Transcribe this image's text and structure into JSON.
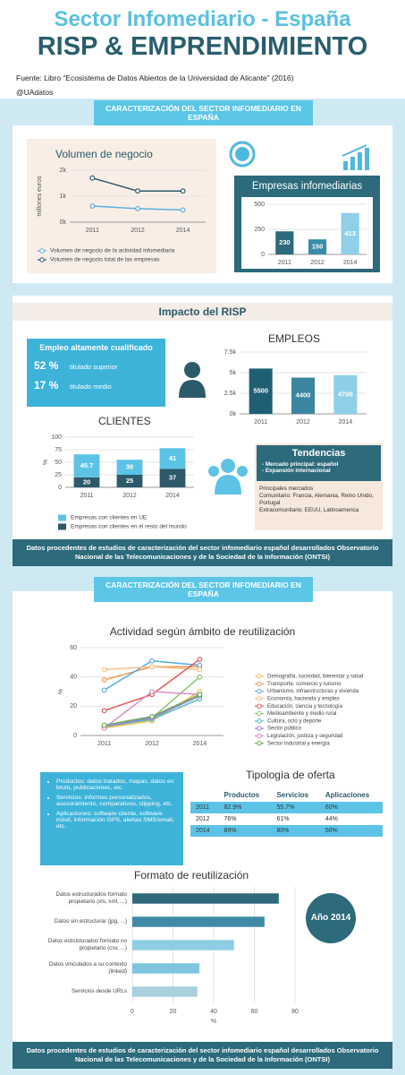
{
  "header": {
    "title": "Sector Infomediario - España",
    "subtitle": "RISP & EMPRENDIMIENTO",
    "source": "Fuente: Libro “Ecosistema de Datos Abiertos de la Universidad de Alicante” (2016)",
    "handle": "@UAdatos"
  },
  "banners": [
    "CARACTERIZACIÓN DEL SECTOR INFOMEDIARIO EN ESPAÑA",
    "CARACTERIZACIÓN DEL SECTOR INFOMEDIARIO EN ESPAÑA"
  ],
  "impacto": {
    "title": "Impacto del RISP",
    "empleo": {
      "title": "Empleo altamente cualificado",
      "items": [
        {
          "value": "52 %",
          "label": "titulado superior"
        },
        {
          "value": "17 %",
          "label": "titulado medio"
        }
      ]
    },
    "tendencias": {
      "title": "Tendencias",
      "points": [
        "- Mercado principal: español",
        "- Expansión internacional"
      ],
      "markets_title": "Principales mercados",
      "markets": [
        "Comunitario: Francia, Alemania, Reino Unido, Portugal",
        "Extracomunitario: EEUU, Latinoamerica"
      ]
    }
  },
  "footers": [
    "Datos procedentes de estudios de caracterización del sector infomediario español desarrollados Observatorio Nacional de las Telecomunicaciones y de la Sociedad de la Información (ONTSI)",
    "Datos procedentes de estudios de caracterización del sector infomediario español desarrollados Observatorio Nacional de las Telecomunicaciones y de la Sociedad de la Información (ONTSI)"
  ],
  "ofertas": [
    "Productos: datos tratados, mapas, datos en bruto, publicaciones, etc.",
    "Servicios: informes personalizados, asesoramiento, comparativos, clipping, etc.",
    "Aplicaciones: software cliente, software móvil, información GPS, alertas SMS/email, etc."
  ],
  "table": {
    "title": "Tipología de oferta",
    "columns": [
      "Productos",
      "Servicios",
      "Aplicaciones"
    ],
    "rows": [
      {
        "year": "2011",
        "cells": [
          "82.9%",
          "55.7%",
          "60%"
        ]
      },
      {
        "year": "2012",
        "cells": [
          "76%",
          "61%",
          "44%"
        ]
      },
      {
        "year": "2014",
        "cells": [
          "89%",
          "80%",
          "50%"
        ]
      }
    ]
  },
  "badge": "Año 2014",
  "chart_data": [
    {
      "type": "line",
      "title": "Volumen de negocio",
      "y_label": "millones euros",
      "categories": [
        "2011",
        "2012",
        "2014"
      ],
      "ylim": [
        0,
        2000
      ],
      "yticks": [
        {
          "value": 0,
          "label": "0k"
        },
        {
          "value": 1000,
          "label": "1k"
        },
        {
          "value": 2000,
          "label": "2k"
        }
      ],
      "grid": true,
      "legend": true,
      "series": [
        {
          "name": "Volumen de negocio de la actividad infomediaria",
          "color": "#5aaedc",
          "values": [
            620,
            520,
            470
          ]
        },
        {
          "name": "Volumen de negocio total de las empresas",
          "color": "#2c5a6a",
          "values": [
            1700,
            1200,
            1200
          ]
        }
      ]
    },
    {
      "type": "bar",
      "title": "Empresas infomediarias",
      "categories": [
        "2011",
        "2012",
        "2014"
      ],
      "values": [
        230,
        150,
        413
      ],
      "colors": [
        "#2c6a7c",
        "#3a8cab",
        "#8fd0e8"
      ],
      "ylim": [
        0,
        500
      ],
      "yticks": [
        0,
        250,
        500
      ],
      "grid": true,
      "data_labels": true
    },
    {
      "type": "bar",
      "title": "EMPLEOS",
      "categories": [
        "2011",
        "2012",
        "2014"
      ],
      "values": [
        5500,
        4400,
        4700
      ],
      "colors": [
        "#1f5f73",
        "#3a85a0",
        "#8fd0e8"
      ],
      "ylim": [
        0,
        7500
      ],
      "yticks": [
        {
          "value": 0,
          "label": "0k"
        },
        {
          "value": 2500,
          "label": "2.5k"
        },
        {
          "value": 5000,
          "label": "5k"
        },
        {
          "value": 7500,
          "label": "7.5k"
        }
      ],
      "grid": true,
      "data_labels": true
    },
    {
      "type": "bar",
      "title": "CLIENTES",
      "y_label": "%",
      "categories": [
        "2011",
        "2012",
        "2014"
      ],
      "ylim": [
        0,
        100
      ],
      "yticks": [
        0,
        25,
        50,
        75,
        100
      ],
      "grid": true,
      "data_labels": true,
      "legend": true,
      "series": [
        {
          "name": "Empresas con clientes en el resto del mundo",
          "color": "#2c5a6a",
          "values": [
            20,
            25,
            37
          ]
        },
        {
          "name": "Empresas con clientes en UE",
          "color": "#5cc3e6",
          "values": [
            45.7,
            30,
            41
          ]
        }
      ]
    },
    {
      "type": "line",
      "title": "Actividad según ámbito de reutilización",
      "y_label": "%",
      "categories": [
        "2011",
        "2012",
        "2014"
      ],
      "ylim": [
        0,
        60
      ],
      "yticks": [
        0,
        20,
        40,
        60
      ],
      "grid": true,
      "legend": true,
      "series": [
        {
          "name": "Demografía, sociedad, bienestar y salud",
          "color": "#f2c14e",
          "values": [
            5,
            10,
            30
          ]
        },
        {
          "name": "Transporte, comercio y turismo",
          "color": "#f39c5a",
          "values": [
            38,
            47,
            47
          ]
        },
        {
          "name": "Urbanismo, infraestructuras y vivienda",
          "color": "#5aaee0",
          "values": [
            31,
            51,
            48
          ]
        },
        {
          "name": "Economía, hacienda y empleo",
          "color": "#f6c08a",
          "values": [
            45,
            47,
            45
          ]
        },
        {
          "name": "Educación, ciencia y tecnología",
          "color": "#e05a5a",
          "values": [
            17,
            28,
            52
          ]
        },
        {
          "name": "Medioambiente y medio rural",
          "color": "#8dc26f",
          "values": [
            6,
            12,
            40
          ]
        },
        {
          "name": "Cultura, ocio y deporte",
          "color": "#4fc1c0",
          "values": [
            6,
            11,
            25
          ]
        },
        {
          "name": "Sector público",
          "color": "#9b7fd1",
          "values": [
            6,
            12,
            27
          ]
        },
        {
          "name": "Legislación, justicia y seguridad",
          "color": "#d98fc8",
          "values": [
            5,
            30,
            28
          ]
        },
        {
          "name": "Sector industrial y energía",
          "color": "#6aab5b",
          "values": [
            7,
            13,
            28
          ]
        }
      ]
    },
    {
      "type": "hbar",
      "title": "Formato de reutilización",
      "x_label": "%",
      "categories": [
        "Datos estructurados formato propietario (xls, xml, ...)",
        "Datos sin estructurar (jpg, ...)",
        "Datos estructurados formato no propietario (csv, ...)",
        "Datos vinculados a su contexto (linked)",
        "Servicios desde URLs"
      ],
      "values": [
        72,
        65,
        50,
        33,
        32
      ],
      "colors": [
        "#2c6a7c",
        "#3f8ba5",
        "#8fcde3",
        "#7ec6e0",
        "#a9cfdc"
      ],
      "xlim": [
        0,
        80
      ],
      "xticks": [
        0,
        20,
        40,
        60,
        80
      ],
      "grid": true
    }
  ]
}
